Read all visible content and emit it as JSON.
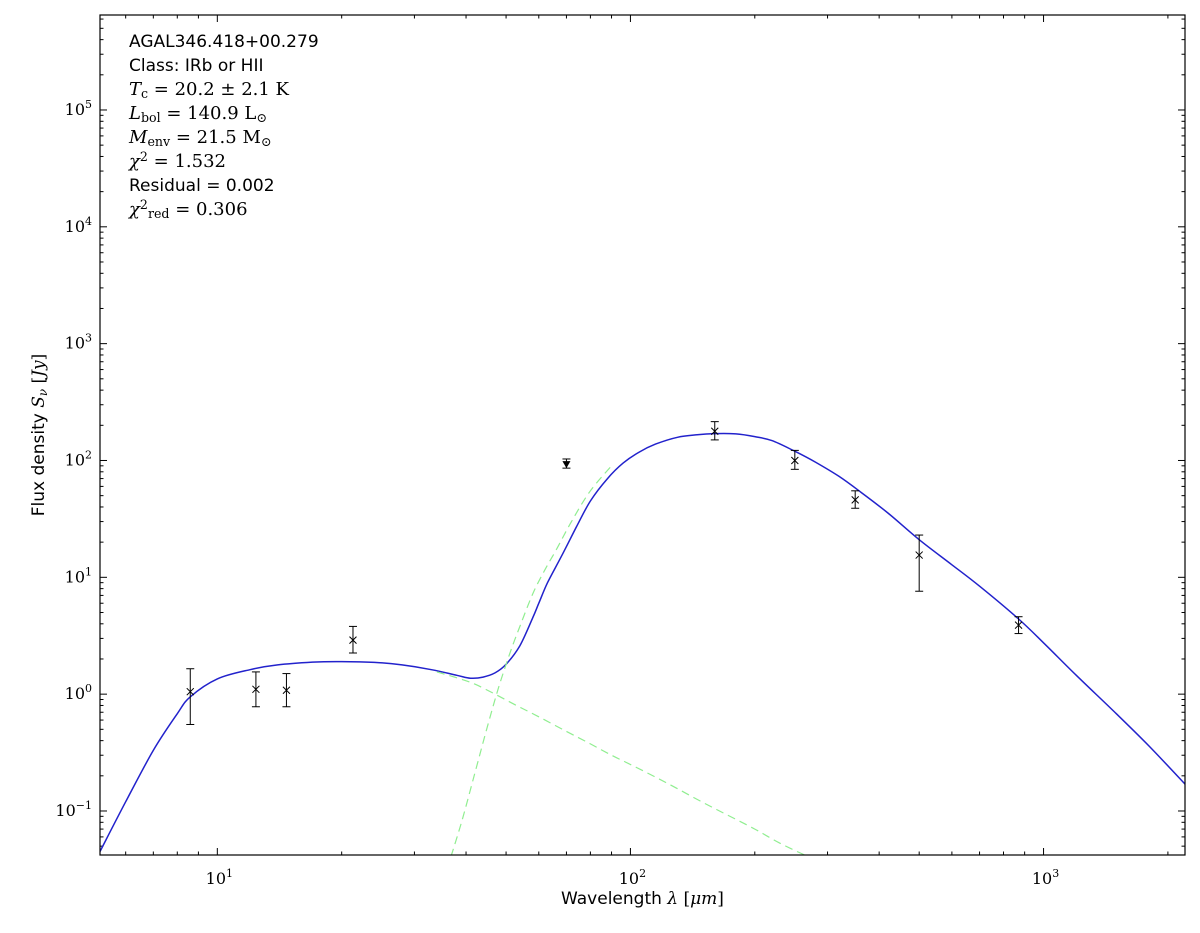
{
  "figure": {
    "background": "#ffffff",
    "frame_color": "#000000"
  },
  "chart_data": {
    "type": "line",
    "title": "",
    "xscale": "log",
    "yscale": "log",
    "xlim": [
      5.2,
      2200
    ],
    "ylim": [
      0.042,
      650000
    ],
    "grid": false,
    "legend": null,
    "x_tick_exponents": [
      1,
      2,
      3
    ],
    "y_tick_exponents": [
      -1,
      0,
      1,
      2,
      3,
      4,
      5
    ],
    "xlabel_text": "Wavelength λ [μm]",
    "ylabel_text": "Flux density Sν [Jy]",
    "xlabel_segments": [
      {
        "t": "Wavelength "
      },
      {
        "t": "λ",
        "it": 1,
        "serif": 1
      },
      {
        "t": " [",
        "serif": 1
      },
      {
        "t": "μm",
        "it": 1,
        "serif": 1
      },
      {
        "t": "]",
        "serif": 1
      }
    ],
    "ylabel_segments": [
      {
        "t": "Flux density "
      },
      {
        "t": "S",
        "it": 1,
        "serif": 1
      },
      {
        "t": "ν",
        "sub": 1,
        "it": 1,
        "serif": 1
      },
      {
        "t": " [",
        "serif": 1
      },
      {
        "t": "Jy",
        "it": 1,
        "serif": 1
      },
      {
        "t": "]",
        "serif": 1
      }
    ],
    "annotation": {
      "lines": [
        {
          "font": "sans",
          "text": "AGAL346.418+00.279",
          "segments": [
            {
              "t": "AGAL346.418+00.279"
            }
          ]
        },
        {
          "font": "sans",
          "text": "Class: IRb or HII",
          "segments": [
            {
              "t": "Class: IRb or HII"
            }
          ]
        },
        {
          "font": "math",
          "text": "Tc = 20.2 ± 2.1 K",
          "segments": [
            {
              "t": "T",
              "it": 1
            },
            {
              "t": "c",
              "sub": 1
            },
            {
              "t": " = 20.2 ± 2.1 K"
            }
          ]
        },
        {
          "font": "math",
          "text": "Lbol = 140.9 L⊙",
          "segments": [
            {
              "t": "L",
              "it": 1
            },
            {
              "t": "bol",
              "sub": 1
            },
            {
              "t": " = 140.9 L"
            },
            {
              "t": "⊙",
              "sub": 1
            }
          ]
        },
        {
          "font": "math",
          "text": "Menv = 21.5 M⊙",
          "segments": [
            {
              "t": "M",
              "it": 1
            },
            {
              "t": "env",
              "sub": 1
            },
            {
              "t": " = 21.5 M"
            },
            {
              "t": "⊙",
              "sub": 1
            }
          ]
        },
        {
          "font": "math",
          "text": "χ2 = 1.532",
          "segments": [
            {
              "t": "χ",
              "it": 1
            },
            {
              "t": "2",
              "sup": 1
            },
            {
              "t": " = 1.532"
            }
          ]
        },
        {
          "font": "sans",
          "text": "Residual = 0.002",
          "segments": [
            {
              "t": "Residual = 0.002"
            }
          ]
        },
        {
          "font": "math",
          "text": "χ2red = 0.306",
          "segments": [
            {
              "t": "χ",
              "it": 1
            },
            {
              "t": "2",
              "sup": 1
            },
            {
              "t": "red",
              "sub": 1
            },
            {
              "t": " = 0.306"
            }
          ]
        }
      ]
    },
    "colors": {
      "model_total": "#2222cc",
      "components": "#90ee90",
      "data": "#000000"
    },
    "series": [
      {
        "name": "total-model-fit",
        "color_key": "model_total",
        "dash": null,
        "width": 1.5,
        "x": [
          5.2,
          6,
          7,
          8,
          8.6,
          10,
          12,
          14,
          17,
          20,
          24,
          28,
          33,
          38,
          41,
          44,
          47,
          50,
          54,
          58,
          60,
          63,
          68,
          74,
          80,
          88,
          96,
          105,
          115,
          130,
          145,
          160,
          180,
          200,
          220,
          250,
          280,
          320,
          360,
          420,
          500,
          600,
          700,
          870,
          1000,
          1200,
          1500,
          1800,
          2200
        ],
        "y": [
          0.045,
          0.12,
          0.33,
          0.68,
          0.95,
          1.35,
          1.62,
          1.78,
          1.88,
          1.9,
          1.87,
          1.78,
          1.62,
          1.45,
          1.37,
          1.4,
          1.52,
          1.8,
          2.6,
          4.5,
          6,
          9,
          15,
          27,
          45,
          70,
          95,
          118,
          138,
          158,
          166,
          170,
          169,
          160,
          148,
          120,
          97,
          73,
          54,
          35.5,
          21,
          12.8,
          8.4,
          4.4,
          2.75,
          1.45,
          0.68,
          0.36,
          0.17
        ]
      },
      {
        "name": "cold-component",
        "color_key": "components",
        "dash": "8 5",
        "width": 1.2,
        "x": [
          36,
          39,
          42,
          45,
          48,
          51,
          54,
          58,
          62,
          66,
          72,
          80,
          90
        ],
        "y": [
          0.032,
          0.08,
          0.21,
          0.52,
          1.15,
          2.2,
          3.8,
          7.2,
          11.5,
          17,
          30,
          55,
          90
        ]
      },
      {
        "name": "warm-component",
        "color_key": "components",
        "dash": "8 5",
        "width": 1.2,
        "x": [
          34,
          38,
          42,
          47,
          53,
          60,
          70,
          80,
          90,
          100,
          115,
          130,
          150,
          170,
          200,
          230,
          270
        ],
        "y": [
          1.55,
          1.38,
          1.22,
          1.0,
          0.8,
          0.64,
          0.48,
          0.375,
          0.3,
          0.25,
          0.195,
          0.155,
          0.118,
          0.094,
          0.07,
          0.053,
          0.0405
        ]
      }
    ],
    "data_points": [
      {
        "x": 8.6,
        "y": 1.05,
        "lo": 0.55,
        "hi": 1.65,
        "m": "x"
      },
      {
        "x": 12.4,
        "y": 1.1,
        "lo": 0.78,
        "hi": 1.55,
        "m": "x"
      },
      {
        "x": 14.7,
        "y": 1.08,
        "lo": 0.78,
        "hi": 1.5,
        "m": "x"
      },
      {
        "x": 21.3,
        "y": 2.9,
        "lo": 2.25,
        "hi": 3.8,
        "m": "x"
      },
      {
        "x": 70,
        "y": 93,
        "lo": 86,
        "hi": 103,
        "m": "v"
      },
      {
        "x": 160,
        "y": 178,
        "lo": 150,
        "hi": 215,
        "m": "x"
      },
      {
        "x": 250,
        "y": 100,
        "lo": 84,
        "hi": 122,
        "m": "x"
      },
      {
        "x": 350,
        "y": 46,
        "lo": 39,
        "hi": 55,
        "m": "x"
      },
      {
        "x": 500,
        "y": 15.5,
        "lo": 7.6,
        "hi": 23,
        "m": "x"
      },
      {
        "x": 870,
        "y": 3.9,
        "lo": 3.3,
        "hi": 4.6,
        "m": "x"
      }
    ]
  }
}
